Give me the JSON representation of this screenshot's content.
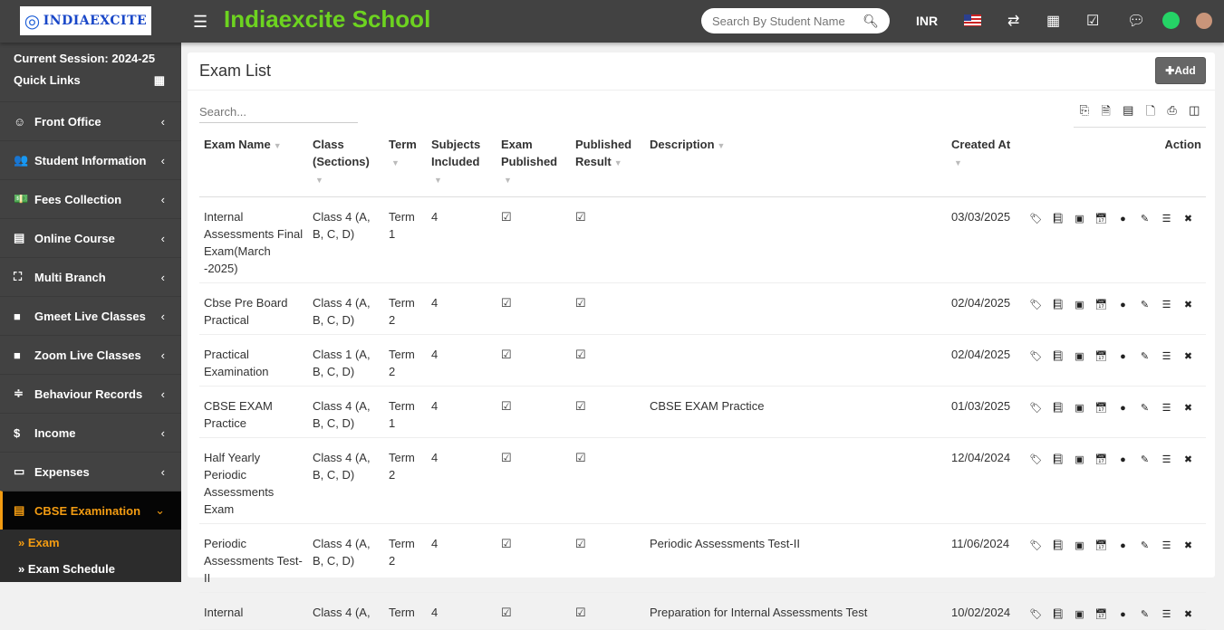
{
  "header": {
    "logo": "INDIAEXCITE",
    "school_name": "Indiaexcite School",
    "search_placeholder": "Search By Student Name",
    "currency": "INR"
  },
  "sidebar": {
    "session": "Current Session: 2024-25",
    "quick_links": "Quick Links",
    "items": [
      {
        "label": "Front Office",
        "icon": "☺"
      },
      {
        "label": "Student Information",
        "icon": "👥"
      },
      {
        "label": "Fees Collection",
        "icon": "💵"
      },
      {
        "label": "Online Course",
        "icon": "▤"
      },
      {
        "label": "Multi Branch",
        "icon": "⛶"
      },
      {
        "label": "Gmeet Live Classes",
        "icon": "■"
      },
      {
        "label": "Zoom Live Classes",
        "icon": "■"
      },
      {
        "label": "Behaviour Records",
        "icon": "≑"
      },
      {
        "label": "Income",
        "icon": "$"
      },
      {
        "label": "Expenses",
        "icon": "▭"
      },
      {
        "label": "CBSE Examination",
        "icon": "▤"
      }
    ],
    "subitems": [
      {
        "label": "Exam"
      },
      {
        "label": "Exam Schedule"
      }
    ]
  },
  "main": {
    "title": "Exam List",
    "add_label": "Add",
    "search_placeholder": "Search...",
    "columns": [
      "Exam Name",
      "Class (Sections)",
      "Term",
      "Subjects Included",
      "Exam Published",
      "Published Result",
      "Description",
      "Created At",
      "Action"
    ],
    "rows": [
      {
        "name": "Internal Assessments Final Exam(March -2025)",
        "class": "Class 4 (A, B, C, D)",
        "term": "Term 1",
        "subjects": "4",
        "published": "☑",
        "result": "☑",
        "description": "",
        "created": "03/03/2025"
      },
      {
        "name": "Cbse Pre Board Practical",
        "class": "Class 4 (A, B, C, D)",
        "term": "Term 2",
        "subjects": "4",
        "published": "☑",
        "result": "☑",
        "description": "",
        "created": "02/04/2025"
      },
      {
        "name": "Practical Examination",
        "class": "Class 1 (A, B, C, D)",
        "term": "Term 2",
        "subjects": "4",
        "published": "☑",
        "result": "☑",
        "description": "",
        "created": "02/04/2025"
      },
      {
        "name": "CBSE EXAM Practice",
        "class": "Class 4 (A, B, C, D)",
        "term": "Term 1",
        "subjects": "4",
        "published": "☑",
        "result": "☑",
        "description": "CBSE EXAM Practice",
        "created": "01/03/2025"
      },
      {
        "name": "Half Yearly Periodic Assessments Exam",
        "class": "Class 4 (A, B, C, D)",
        "term": "Term 2",
        "subjects": "4",
        "published": "☑",
        "result": "☑",
        "description": "",
        "created": "12/04/2024"
      },
      {
        "name": "Periodic Assessments Test-II",
        "class": "Class 4 (A, B, C, D)",
        "term": "Term 2",
        "subjects": "4",
        "published": "☑",
        "result": "☑",
        "description": "Periodic Assessments Test-II",
        "created": "11/06/2024"
      },
      {
        "name": "Internal",
        "class": "Class 4 (A,",
        "term": "Term",
        "subjects": "4",
        "published": "☑",
        "result": "☑",
        "description": "Preparation for Internal Assessments Test",
        "created": "10/02/2024"
      }
    ]
  },
  "colors": {
    "topbar": "#424242",
    "brand_green": "#6dd320",
    "active": "#f39c12"
  }
}
